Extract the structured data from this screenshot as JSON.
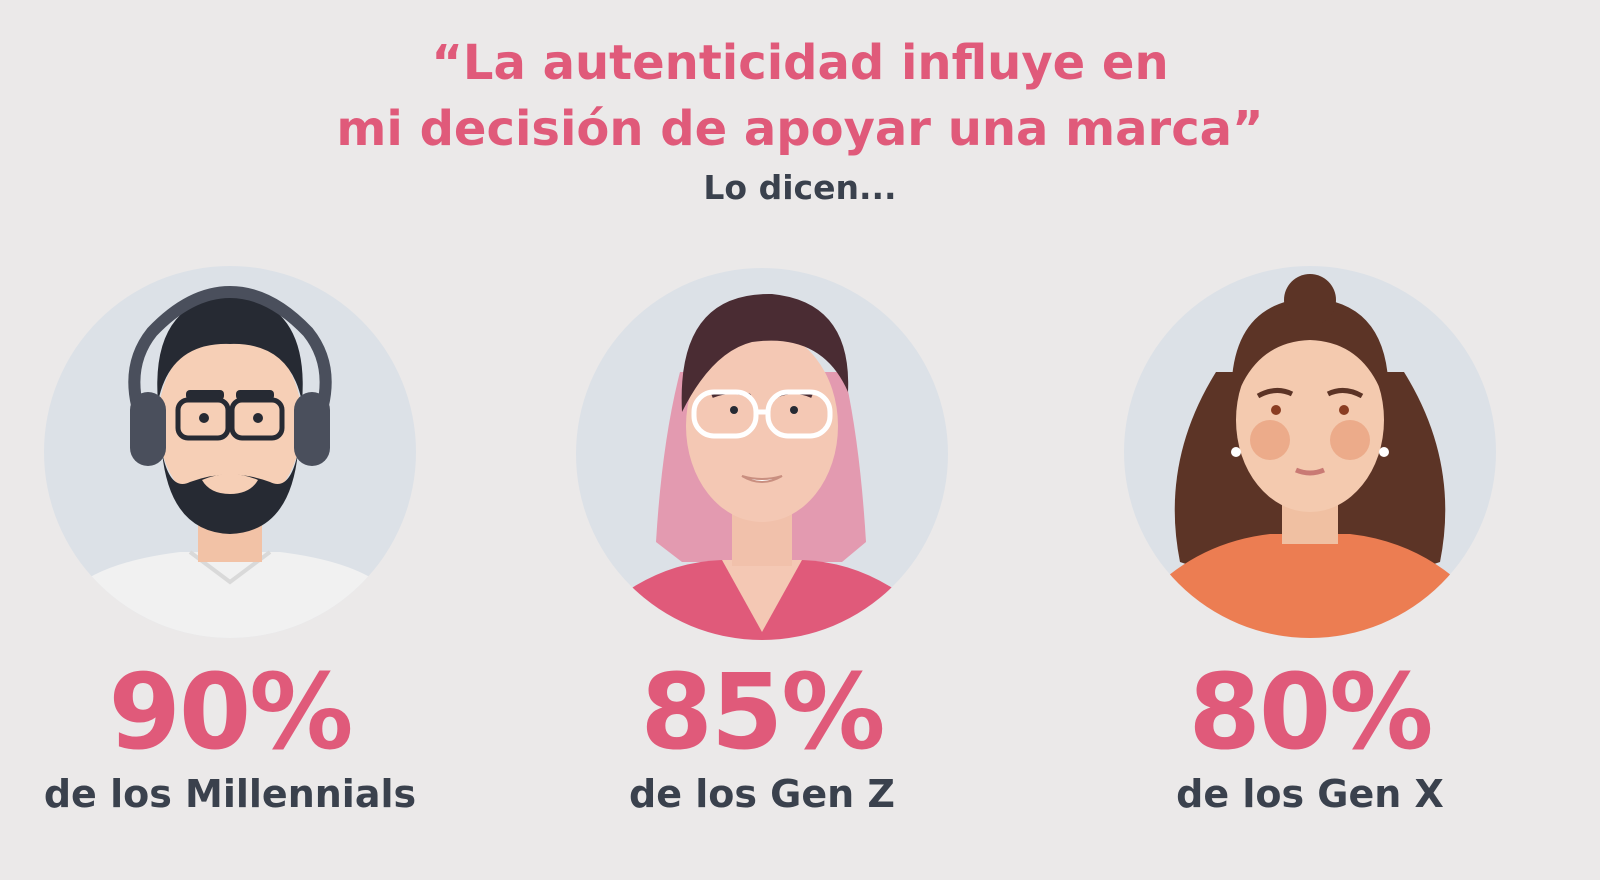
{
  "title": {
    "line1": "“La autenticidad influye en",
    "line2": "mi decisión de apoyar una marca”"
  },
  "subtitle": "Lo dicen...",
  "colors": {
    "accent": "#e05a7a",
    "text": "#3a414d",
    "background": "#ebe9e9",
    "circle": "#dce1e7"
  },
  "personas": [
    {
      "icon": "bearded-man-headphones-avatar",
      "percent": "90%",
      "label": "de los Millennials"
    },
    {
      "icon": "pink-hair-glasses-avatar",
      "percent": "85%",
      "label": "de los Gen Z"
    },
    {
      "icon": "curly-hair-woman-avatar",
      "percent": "80%",
      "label": "de los Gen X"
    }
  ]
}
